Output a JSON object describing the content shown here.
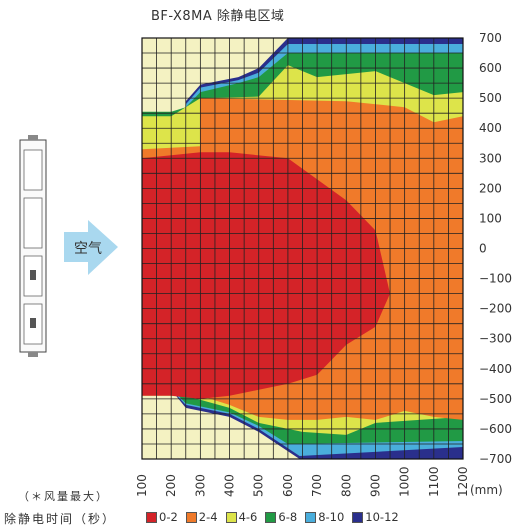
{
  "title": "BF-X8MA 除静电区域",
  "arrow_label": "空气",
  "note": "（＊风量最大）",
  "legend_caption": "除静电时间（秒）",
  "unit": "(mm)",
  "legend": [
    {
      "label": "0-2",
      "color": "#d42328"
    },
    {
      "label": "2-4",
      "color": "#f07a2a"
    },
    {
      "label": "4-6",
      "color": "#dde44a"
    },
    {
      "label": "6-8",
      "color": "#219a45"
    },
    {
      "label": "8-10",
      "color": "#4aaedc"
    },
    {
      "label": "10-12",
      "color": "#2a2f8c"
    }
  ],
  "chart_data": {
    "type": "heatmap",
    "title": "BF-X8MA 除静电区域",
    "x_ticks": [
      100,
      200,
      300,
      400,
      500,
      600,
      700,
      800,
      900,
      1000,
      1100,
      1200
    ],
    "y_ticks": [
      700,
      600,
      500,
      400,
      300,
      200,
      100,
      0,
      -100,
      -200,
      -300,
      -400,
      -500,
      -600,
      -700
    ],
    "xlim": [
      100,
      1200
    ],
    "ylim": [
      -700,
      700
    ],
    "xlabel": "(mm)",
    "background_color": "#f4f2c2",
    "grid": true,
    "zones": [
      {
        "label": "10-12",
        "color": "#2a2f8c",
        "points": [
          [
            250,
            490
          ],
          [
            300,
            545
          ],
          [
            430,
            570
          ],
          [
            500,
            600
          ],
          [
            600,
            710
          ],
          [
            1200,
            710
          ],
          [
            1200,
            -710
          ],
          [
            640,
            -710
          ],
          [
            500,
            -610
          ],
          [
            400,
            -560
          ],
          [
            250,
            -530
          ],
          [
            200,
            -470
          ],
          [
            100,
            -470
          ],
          [
            100,
            -460
          ],
          [
            200,
            -460
          ],
          [
            250,
            490
          ]
        ]
      },
      {
        "label": "8-10",
        "color": "#4aaedc",
        "points": [
          [
            250,
            480
          ],
          [
            300,
            535
          ],
          [
            430,
            560
          ],
          [
            500,
            585
          ],
          [
            600,
            680
          ],
          [
            1200,
            680
          ],
          [
            1200,
            -660
          ],
          [
            640,
            -690
          ],
          [
            500,
            -600
          ],
          [
            400,
            -550
          ],
          [
            250,
            -520
          ],
          [
            200,
            -470
          ],
          [
            100,
            -470
          ],
          [
            100,
            -455
          ],
          [
            200,
            -455
          ],
          [
            250,
            480
          ]
        ]
      },
      {
        "label": "6-8",
        "color": "#219a45",
        "points": [
          [
            100,
            455
          ],
          [
            200,
            455
          ],
          [
            250,
            470
          ],
          [
            300,
            520
          ],
          [
            430,
            550
          ],
          [
            500,
            570
          ],
          [
            600,
            650
          ],
          [
            1200,
            650
          ],
          [
            1200,
            -640
          ],
          [
            600,
            -650
          ],
          [
            500,
            -590
          ],
          [
            400,
            -545
          ],
          [
            250,
            -515
          ],
          [
            200,
            -465
          ],
          [
            100,
            -465
          ]
        ]
      },
      {
        "label": "4-6",
        "color": "#dde44a",
        "points": [
          [
            100,
            440
          ],
          [
            200,
            440
          ],
          [
            300,
            500
          ],
          [
            500,
            505
          ],
          [
            600,
            610
          ],
          [
            700,
            570
          ],
          [
            900,
            590
          ],
          [
            1100,
            510
          ],
          [
            1200,
            520
          ],
          [
            1200,
            -560
          ],
          [
            900,
            -580
          ],
          [
            800,
            -620
          ],
          [
            650,
            -610
          ],
          [
            500,
            -580
          ],
          [
            400,
            -530
          ],
          [
            250,
            -490
          ],
          [
            100,
            -490
          ]
        ]
      },
      {
        "label": "2-4",
        "color": "#f07a2a",
        "points": [
          [
            100,
            330
          ],
          [
            300,
            340
          ],
          [
            300,
            500
          ],
          [
            800,
            490
          ],
          [
            1000,
            470
          ],
          [
            1100,
            420
          ],
          [
            1200,
            440
          ],
          [
            1200,
            -570
          ],
          [
            1100,
            -560
          ],
          [
            1000,
            -540
          ],
          [
            900,
            -570
          ],
          [
            800,
            -560
          ],
          [
            700,
            -570
          ],
          [
            600,
            -570
          ],
          [
            500,
            -560
          ],
          [
            400,
            -520
          ],
          [
            300,
            -490
          ],
          [
            100,
            -470
          ]
        ]
      },
      {
        "label": "0-2",
        "color": "#d42328",
        "points": [
          [
            100,
            300
          ],
          [
            300,
            320
          ],
          [
            400,
            320
          ],
          [
            600,
            300
          ],
          [
            800,
            160
          ],
          [
            900,
            60
          ],
          [
            950,
            -150
          ],
          [
            900,
            -260
          ],
          [
            800,
            -320
          ],
          [
            700,
            -420
          ],
          [
            600,
            -450
          ],
          [
            500,
            -470
          ],
          [
            400,
            -490
          ],
          [
            300,
            -500
          ],
          [
            200,
            -490
          ],
          [
            100,
            -490
          ]
        ]
      }
    ]
  }
}
